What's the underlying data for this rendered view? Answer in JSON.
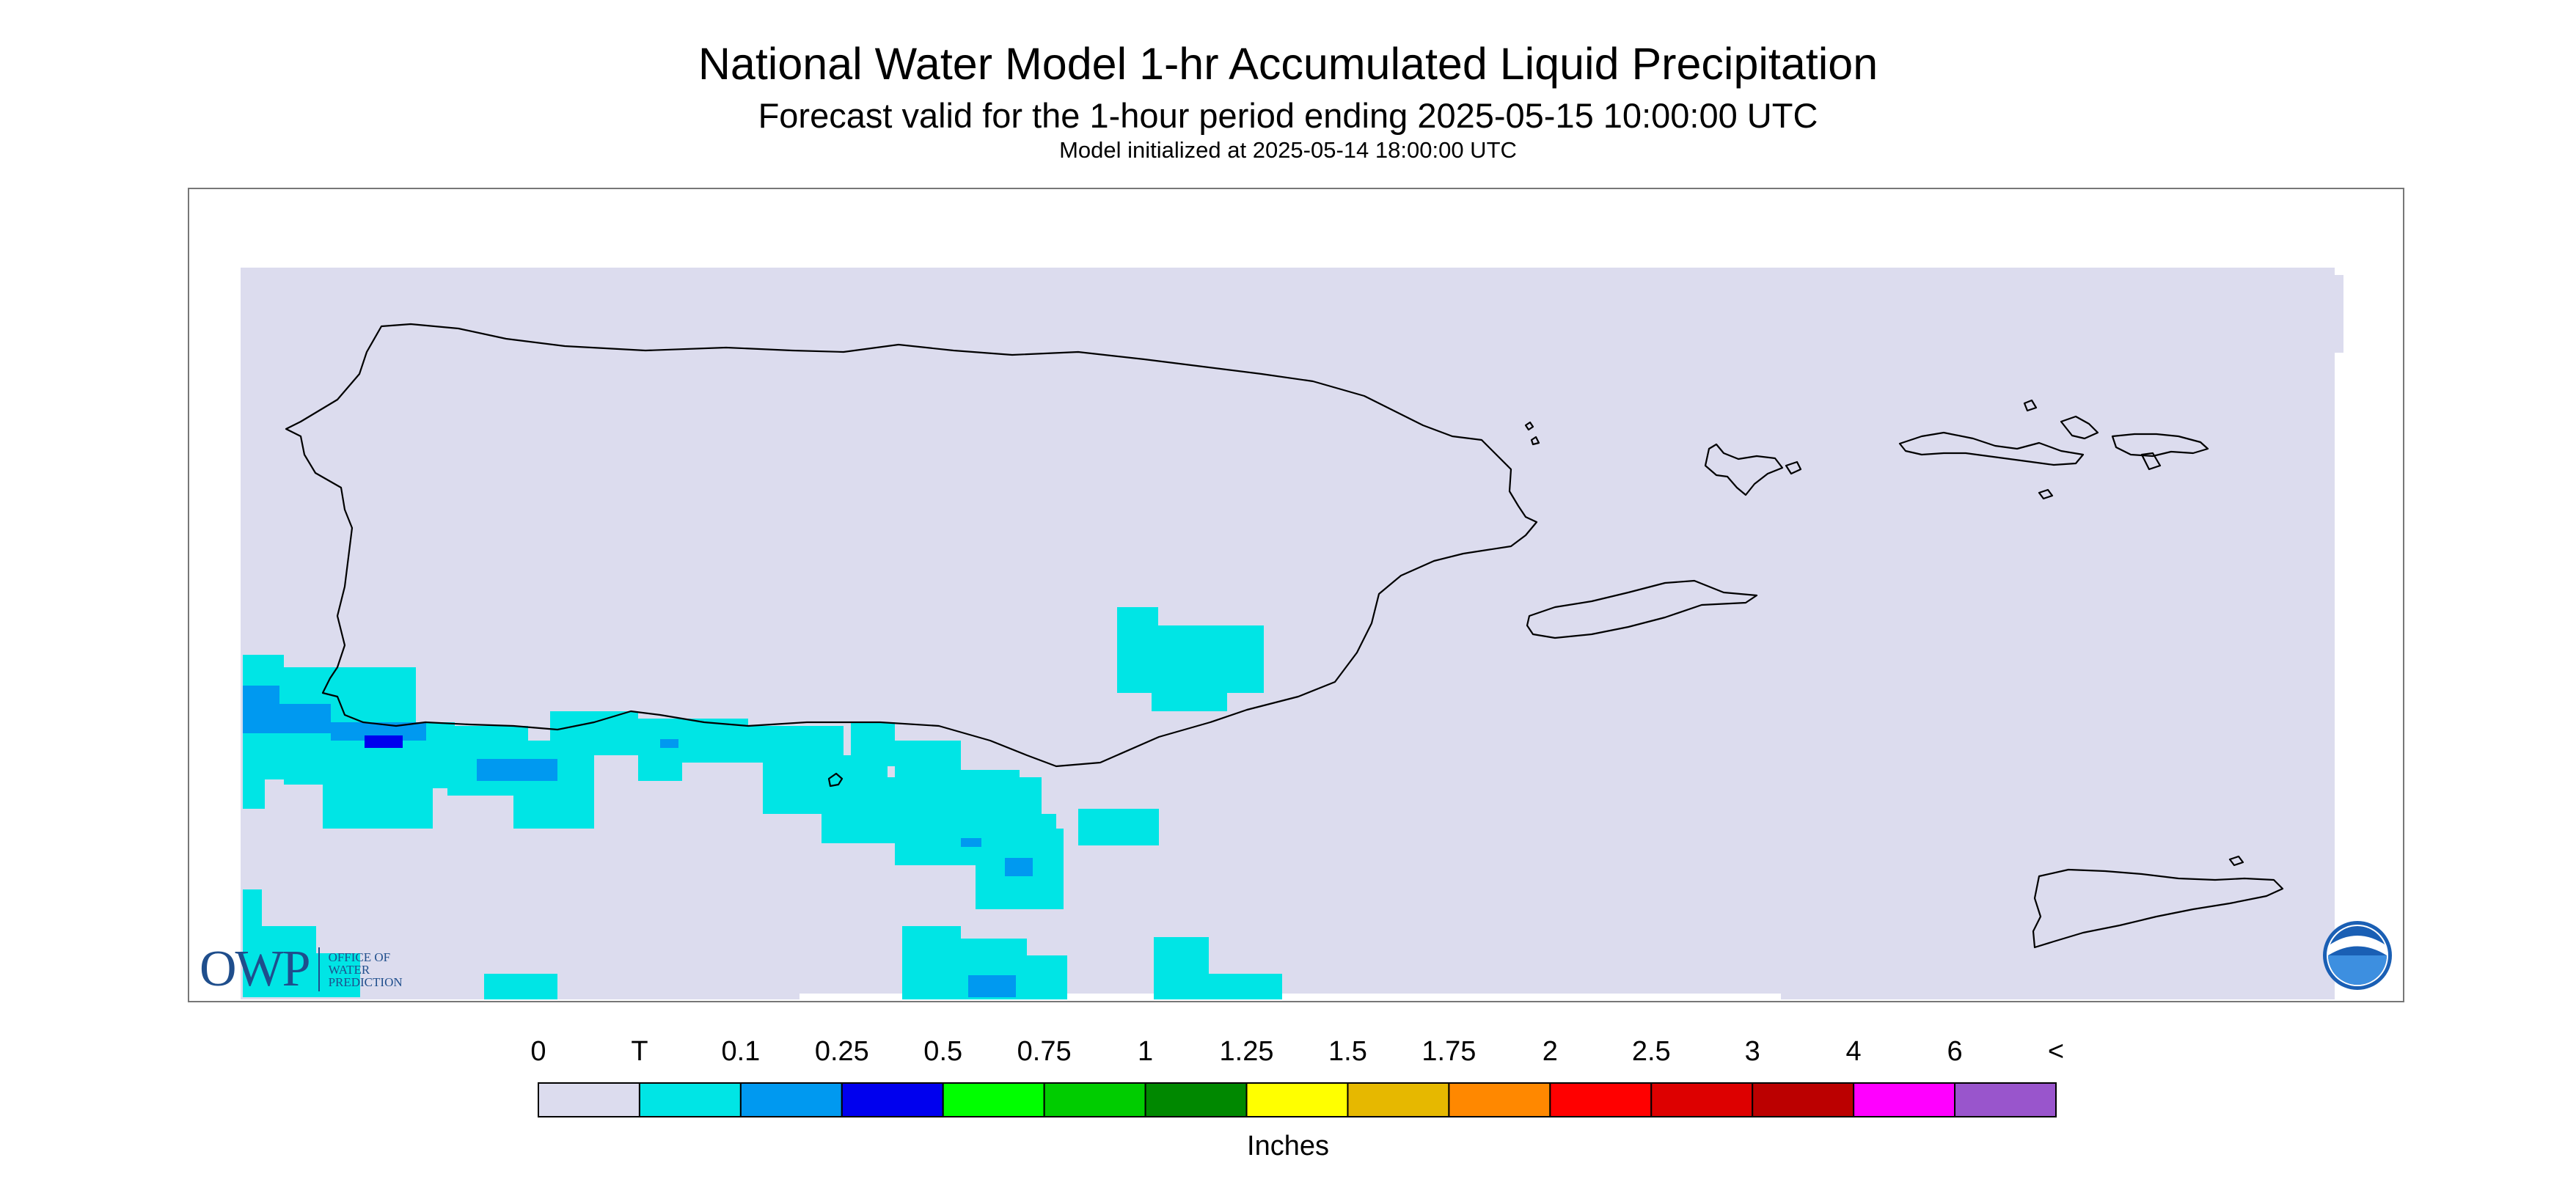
{
  "header": {
    "title": "National Water Model 1-hr Accumulated Liquid Precipitation",
    "subtitle": "Forecast valid for the 1-hour period ending 2025-05-15 10:00:00 UTC",
    "init": "Model initialized at 2025-05-14 18:00:00 UTC"
  },
  "logos": {
    "owp_mark": "OWP",
    "owp_line1": "Office of",
    "owp_line2": "Water",
    "owp_line3": "Prediction",
    "noaa": "NOAA"
  },
  "legend": {
    "units": "Inches",
    "labels": [
      "0",
      "T",
      "0.1",
      "0.25",
      "0.5",
      "0.75",
      "1",
      "1.25",
      "1.5",
      "1.75",
      "2",
      "2.5",
      "3",
      "4",
      "6",
      "<"
    ],
    "colors": [
      "#dcdcee",
      "#00e5e5",
      "#0099f0",
      "#0000ee",
      "#00ff00",
      "#00cc00",
      "#008800",
      "#ffff00",
      "#e6b800",
      "#ff8800",
      "#ff0000",
      "#dd0000",
      "#bb0000",
      "#ff00ff",
      "#9955cc"
    ]
  },
  "colors": {
    "background": "#dcdcee",
    "trace": "#00e5e5",
    "light": "#0099f0",
    "medium": "#0000ee",
    "coast": "#000000"
  }
}
